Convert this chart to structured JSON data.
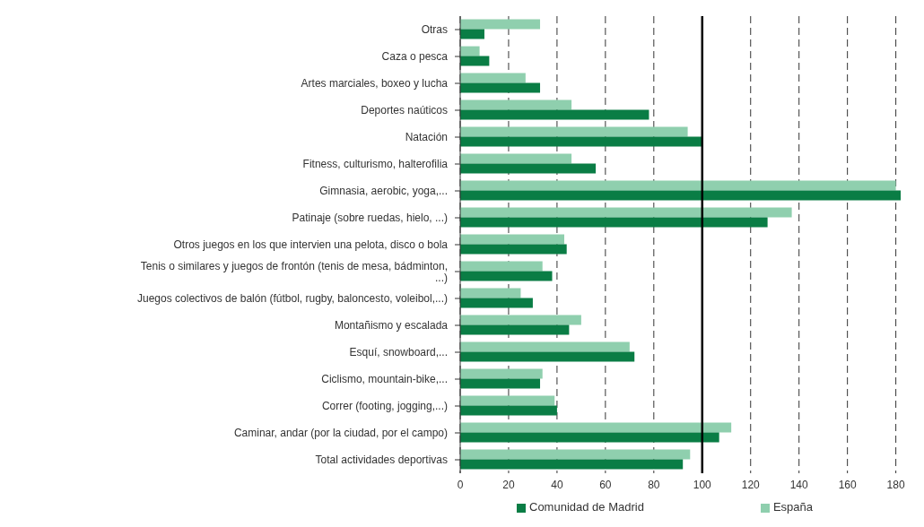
{
  "chart_data": {
    "type": "bar",
    "orientation": "horizontal",
    "categories": [
      "Otras",
      "Caza o pesca",
      "Artes marciales, boxeo y lucha",
      "Deportes naúticos",
      "Natación",
      "Fitness, culturismo, halterofilia",
      "Gimnasia, aerobic, yoga,...",
      "Patinaje (sobre ruedas, hielo, ...)",
      "Otros juegos en los que intervien una pelota, disco o bola",
      "Tenis o similares y juegos de frontón (tenis de mesa, bádminton, ...)",
      "Juegos colectivos de balón (fútbol, rugby, baloncesto, voleibol,...)",
      "Montañismo y escalada",
      "Esquí, snowboard,...",
      "Ciclismo, mountain-bike,...",
      "Correr (footing, jogging,...)",
      "Caminar, andar (por la ciudad, por el campo)",
      "Total actividades deportivas"
    ],
    "series": [
      {
        "name": "Comunidad de Madrid",
        "color": "#0a7d45",
        "values": [
          10,
          12,
          33,
          78,
          100,
          56,
          182,
          127,
          44,
          38,
          30,
          45,
          72,
          33,
          40,
          107,
          92
        ]
      },
      {
        "name": "España",
        "color": "#8fcfae",
        "values": [
          33,
          8,
          27,
          46,
          94,
          46,
          180,
          137,
          43,
          34,
          25,
          50,
          70,
          34,
          39,
          112,
          95
        ]
      }
    ],
    "xlim": [
      0,
      182
    ],
    "xticks": [
      0,
      20,
      40,
      60,
      80,
      100,
      120,
      140,
      160,
      180
    ],
    "grid": "x",
    "legend": "bottom",
    "ref_lines": [
      {
        "axis": "x",
        "value": 100,
        "color": "#000000",
        "line_style": "solid"
      }
    ]
  }
}
